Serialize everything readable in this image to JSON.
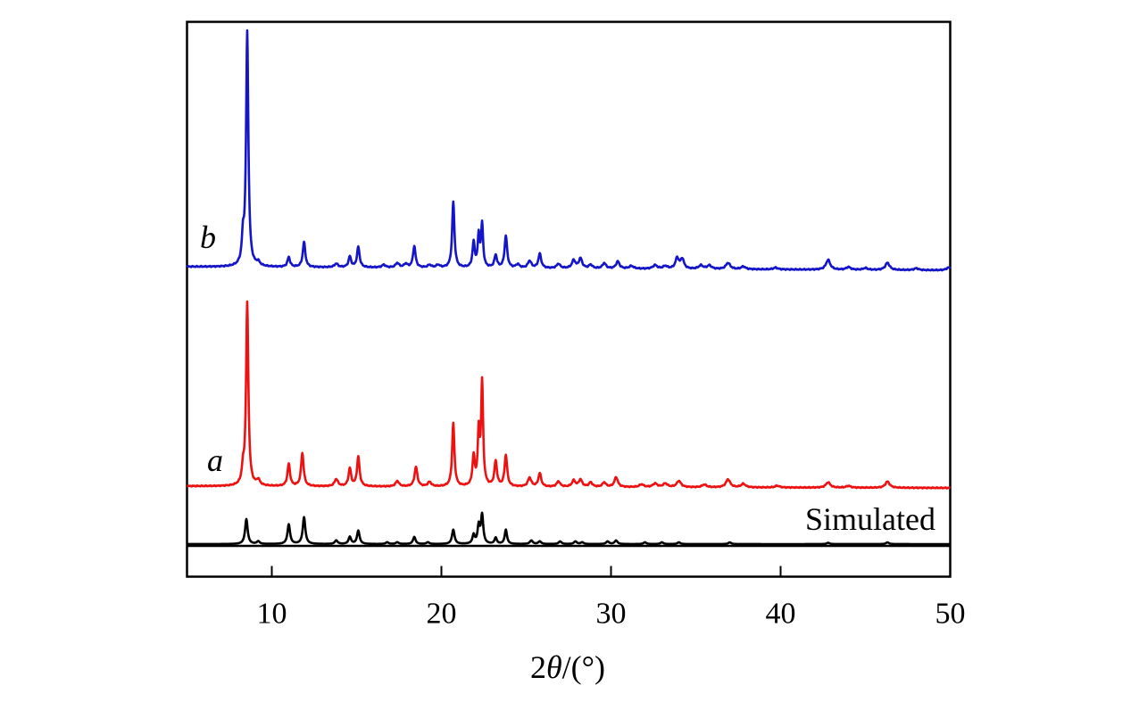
{
  "chart_data": {
    "type": "line",
    "title": "",
    "xlabel_parts": [
      "2",
      "θ",
      "/(°)"
    ],
    "ylabel": "",
    "xlim": [
      5,
      50
    ],
    "xticks": [
      10,
      20,
      30,
      40,
      50
    ],
    "grid": false,
    "legend": "inline labels",
    "series": [
      {
        "name": "Simulated",
        "label": "Simulated",
        "label_style": "plain",
        "color": "#000000",
        "baseline": 0.0,
        "drift": 0.0,
        "noise": 0.0,
        "peaks": [
          [
            8.5,
            28,
            0.09
          ],
          [
            9.2,
            3,
            0.1
          ],
          [
            11.0,
            22,
            0.09
          ],
          [
            11.9,
            30,
            0.09
          ],
          [
            13.8,
            4,
            0.1
          ],
          [
            14.6,
            8,
            0.09
          ],
          [
            15.1,
            15,
            0.09
          ],
          [
            16.8,
            2,
            0.1
          ],
          [
            17.4,
            2,
            0.1
          ],
          [
            18.4,
            8,
            0.09
          ],
          [
            19.2,
            2,
            0.1
          ],
          [
            20.7,
            16,
            0.09
          ],
          [
            21.9,
            10,
            0.08
          ],
          [
            22.2,
            20,
            0.08
          ],
          [
            22.4,
            32,
            0.08
          ],
          [
            23.2,
            7,
            0.08
          ],
          [
            23.8,
            16,
            0.08
          ],
          [
            25.3,
            4,
            0.1
          ],
          [
            25.8,
            3,
            0.1
          ],
          [
            27.0,
            3,
            0.1
          ],
          [
            27.9,
            3,
            0.1
          ],
          [
            28.3,
            2,
            0.1
          ],
          [
            29.8,
            3,
            0.1
          ],
          [
            30.3,
            4,
            0.1
          ],
          [
            32.0,
            2,
            0.1
          ],
          [
            33.0,
            2,
            0.1
          ],
          [
            34.0,
            2,
            0.1
          ],
          [
            37.0,
            2,
            0.1
          ],
          [
            42.8,
            1.5,
            0.1
          ],
          [
            46.3,
            2,
            0.1
          ]
        ]
      },
      {
        "name": "a",
        "label": "a",
        "label_style": "italic",
        "color": "#ee1111",
        "baseline": 65.0,
        "drift": -2.0,
        "noise": 0.6,
        "peaks": [
          [
            8.3,
            16,
            0.08
          ],
          [
            8.55,
            205,
            0.08
          ],
          [
            9.2,
            6,
            0.12
          ],
          [
            11.0,
            25,
            0.09
          ],
          [
            11.8,
            37,
            0.09
          ],
          [
            13.8,
            8,
            0.12
          ],
          [
            14.6,
            20,
            0.09
          ],
          [
            15.1,
            33,
            0.09
          ],
          [
            17.4,
            6,
            0.12
          ],
          [
            18.5,
            22,
            0.1
          ],
          [
            19.3,
            5,
            0.12
          ],
          [
            20.7,
            71,
            0.08
          ],
          [
            21.9,
            33,
            0.08
          ],
          [
            22.2,
            58,
            0.07
          ],
          [
            22.4,
            115,
            0.07
          ],
          [
            23.2,
            28,
            0.09
          ],
          [
            23.8,
            35,
            0.09
          ],
          [
            25.2,
            10,
            0.12
          ],
          [
            25.8,
            15,
            0.1
          ],
          [
            26.9,
            6,
            0.12
          ],
          [
            27.8,
            7,
            0.12
          ],
          [
            28.2,
            8,
            0.12
          ],
          [
            28.8,
            5,
            0.12
          ],
          [
            29.6,
            5,
            0.12
          ],
          [
            30.3,
            11,
            0.12
          ],
          [
            31.8,
            3,
            0.15
          ],
          [
            32.6,
            4,
            0.15
          ],
          [
            33.2,
            4,
            0.15
          ],
          [
            34.0,
            7,
            0.15
          ],
          [
            35.5,
            3,
            0.15
          ],
          [
            36.9,
            9,
            0.15
          ],
          [
            37.8,
            4,
            0.15
          ],
          [
            39.8,
            2,
            0.15
          ],
          [
            42.8,
            6,
            0.15
          ],
          [
            44.0,
            2,
            0.15
          ],
          [
            46.3,
            7,
            0.15
          ]
        ]
      },
      {
        "name": "b",
        "label": "b",
        "label_style": "italic",
        "color": "#1414c8",
        "baseline": 311.0,
        "drift": -4.0,
        "noise": 0.7,
        "peaks": [
          [
            8.3,
            28,
            0.08
          ],
          [
            8.55,
            262,
            0.08
          ],
          [
            9.2,
            4,
            0.12
          ],
          [
            11.0,
            11,
            0.09
          ],
          [
            11.9,
            28,
            0.09
          ],
          [
            13.8,
            4,
            0.12
          ],
          [
            14.6,
            12,
            0.09
          ],
          [
            15.1,
            23,
            0.09
          ],
          [
            16.6,
            3,
            0.12
          ],
          [
            17.4,
            5,
            0.12
          ],
          [
            17.9,
            4,
            0.12
          ],
          [
            18.4,
            24,
            0.09
          ],
          [
            19.3,
            3,
            0.12
          ],
          [
            19.8,
            3,
            0.12
          ],
          [
            20.7,
            74,
            0.08
          ],
          [
            21.9,
            28,
            0.08
          ],
          [
            22.2,
            35,
            0.07
          ],
          [
            22.4,
            48,
            0.07
          ],
          [
            23.2,
            14,
            0.09
          ],
          [
            23.8,
            36,
            0.09
          ],
          [
            24.5,
            4,
            0.12
          ],
          [
            25.2,
            8,
            0.12
          ],
          [
            25.8,
            16,
            0.1
          ],
          [
            26.9,
            5,
            0.12
          ],
          [
            27.8,
            9,
            0.12
          ],
          [
            28.2,
            11,
            0.12
          ],
          [
            28.8,
            4,
            0.12
          ],
          [
            29.6,
            6,
            0.12
          ],
          [
            30.4,
            8,
            0.12
          ],
          [
            31.2,
            3,
            0.15
          ],
          [
            32.6,
            4,
            0.15
          ],
          [
            33.2,
            3,
            0.15
          ],
          [
            33.9,
            12,
            0.12
          ],
          [
            34.2,
            11,
            0.12
          ],
          [
            35.3,
            4,
            0.15
          ],
          [
            35.8,
            4,
            0.15
          ],
          [
            36.9,
            7,
            0.15
          ],
          [
            37.8,
            3,
            0.15
          ],
          [
            39.7,
            2,
            0.15
          ],
          [
            42.8,
            11,
            0.15
          ],
          [
            44.0,
            3,
            0.15
          ],
          [
            45.0,
            2,
            0.15
          ],
          [
            46.3,
            8,
            0.15
          ],
          [
            48.0,
            2,
            0.15
          ],
          [
            49.9,
            3,
            0.15
          ]
        ]
      }
    ]
  }
}
